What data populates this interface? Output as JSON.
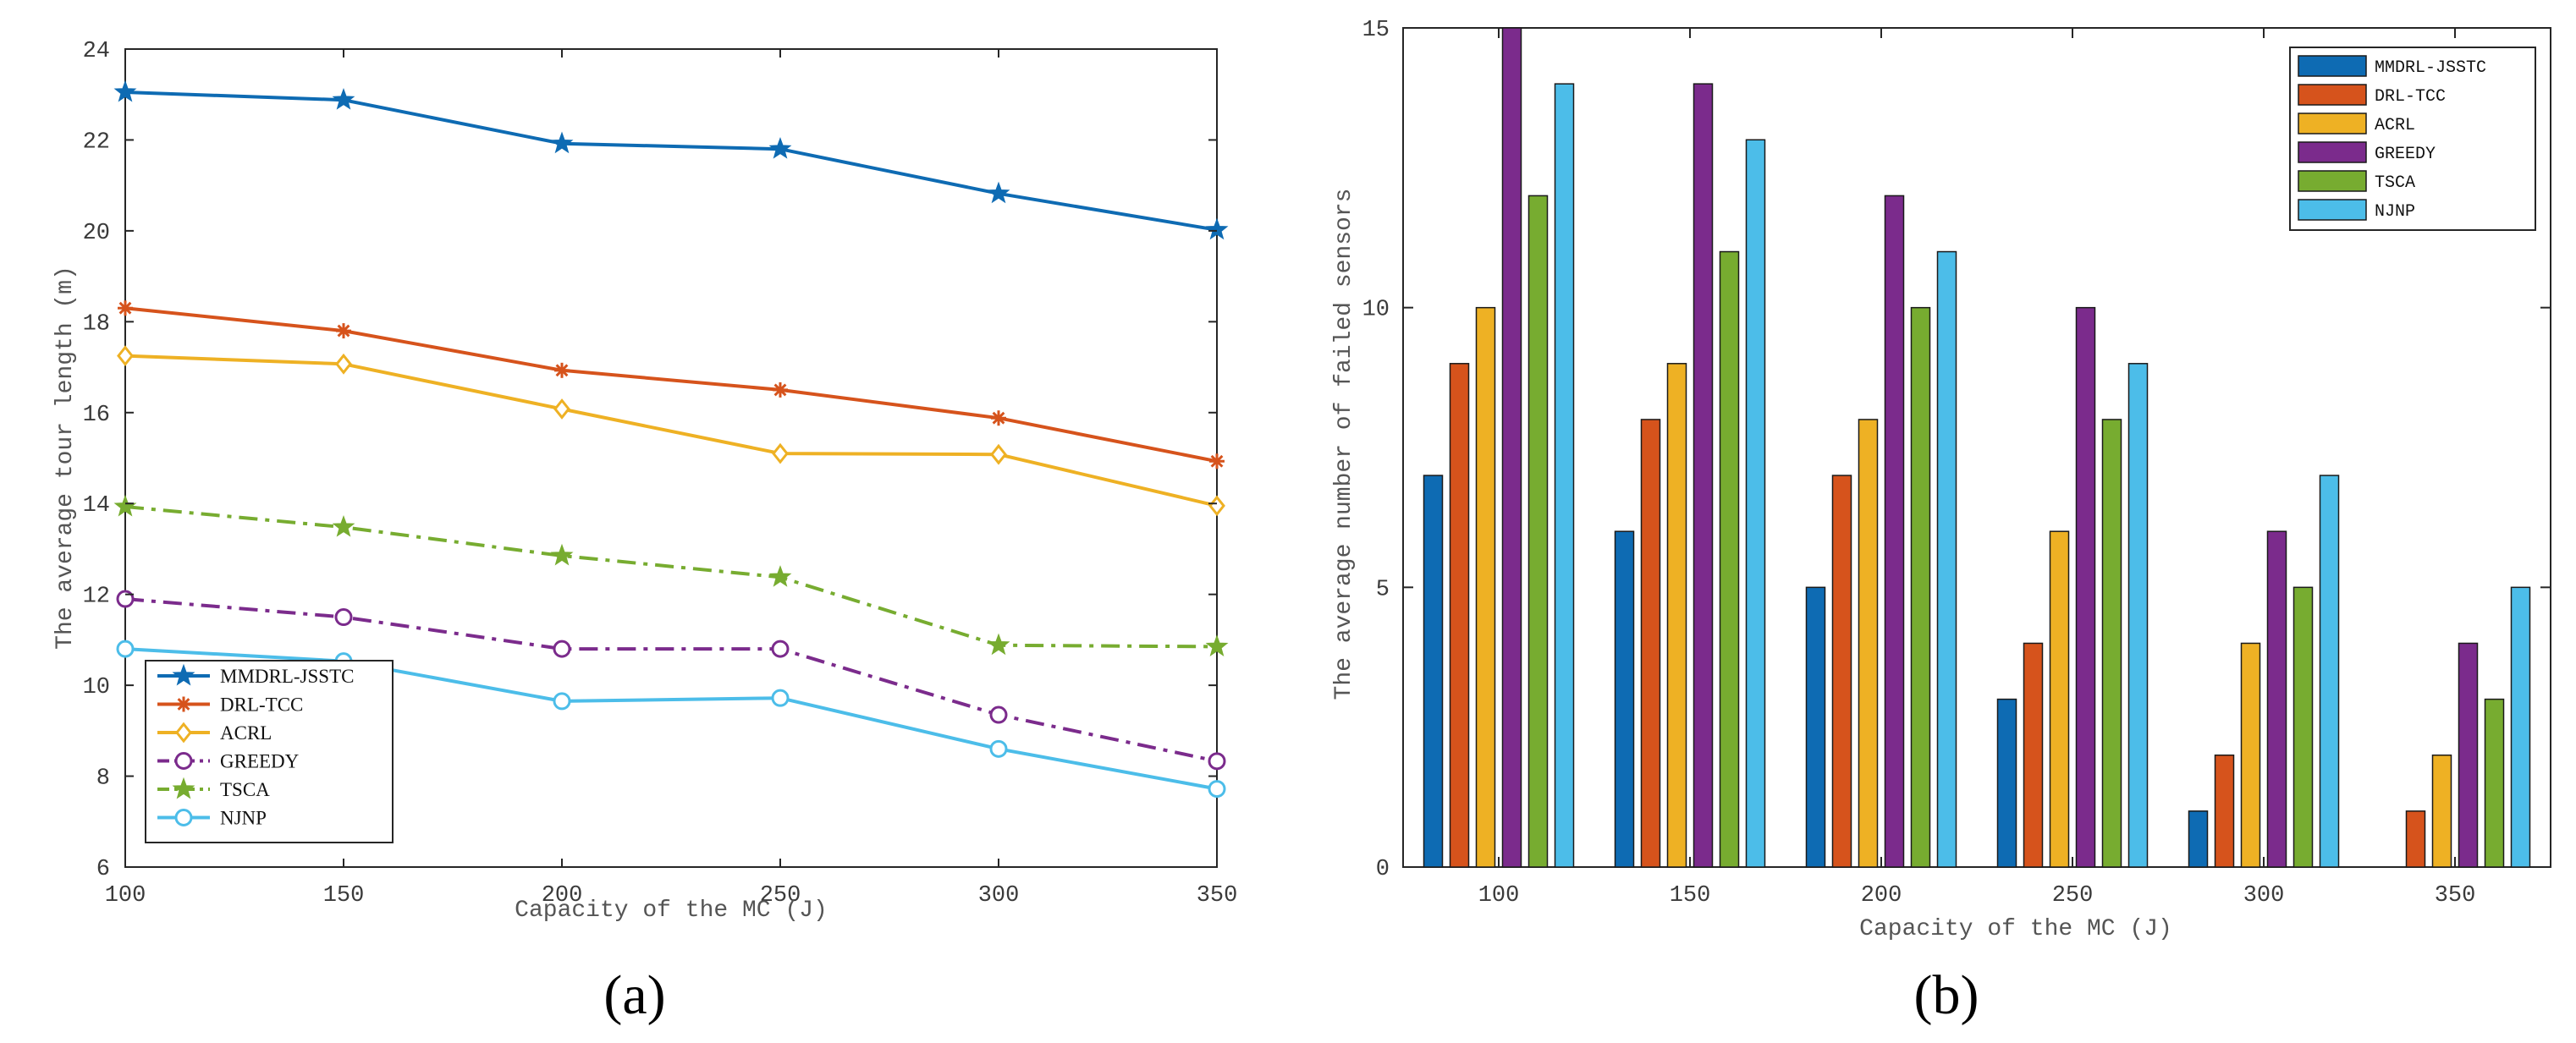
{
  "colors": {
    "MMDRL-JSSTC": "#0e6bb3",
    "DRL-TCC": "#d6531c",
    "ACRL": "#eeb124",
    "GREEDY": "#7b2b8c",
    "TSCA": "#77ac30",
    "NJNP": "#4cbde9"
  },
  "chart_data": [
    {
      "type": "line",
      "panel_label": "(a)",
      "xlabel": "Capacity of the MC (J)",
      "ylabel": "The average tour length (m)",
      "xlim": [
        100,
        350
      ],
      "ylim": [
        6,
        24
      ],
      "xticks": [
        100,
        150,
        200,
        250,
        300,
        350
      ],
      "yticks": [
        6,
        8,
        10,
        12,
        14,
        16,
        18,
        20,
        22,
        24
      ],
      "legend_position": "bottom-left",
      "x": [
        100,
        150,
        200,
        250,
        300,
        350
      ],
      "series": [
        {
          "name": "MMDRL-JSSTC",
          "marker": "star",
          "line": "solid",
          "values": [
            23.05,
            22.88,
            21.92,
            21.8,
            20.82,
            20.02
          ]
        },
        {
          "name": "DRL-TCC",
          "marker": "asterisk",
          "line": "solid",
          "values": [
            18.3,
            17.8,
            16.93,
            16.5,
            15.88,
            14.93
          ]
        },
        {
          "name": "ACRL",
          "marker": "diamond",
          "line": "solid",
          "values": [
            17.25,
            17.07,
            16.08,
            15.1,
            15.08,
            13.95
          ]
        },
        {
          "name": "GREEDY",
          "marker": "circle",
          "line": "dashdot",
          "values": [
            11.9,
            11.5,
            10.8,
            10.8,
            9.35,
            8.33
          ]
        },
        {
          "name": "TSCA",
          "marker": "star",
          "line": "dashdot",
          "values": [
            13.93,
            13.48,
            12.85,
            12.38,
            10.88,
            10.85
          ]
        },
        {
          "name": "NJNP",
          "marker": "circle",
          "line": "solid",
          "values": [
            10.8,
            10.53,
            9.65,
            9.72,
            8.6,
            7.72
          ]
        }
      ]
    },
    {
      "type": "bar",
      "panel_label": "(b)",
      "xlabel": "Capacity of the MC (J)",
      "ylabel": "The average number of failed sensors",
      "ylim": [
        0,
        15
      ],
      "yticks": [
        0,
        5,
        10,
        15
      ],
      "legend_position": "top-right",
      "categories": [
        "100",
        "150",
        "200",
        "250",
        "300",
        "350"
      ],
      "series": [
        {
          "name": "MMDRL-JSSTC",
          "values": [
            7,
            6,
            5,
            3,
            1,
            0
          ]
        },
        {
          "name": "DRL-TCC",
          "values": [
            9,
            8,
            7,
            4,
            2,
            1
          ]
        },
        {
          "name": "ACRL",
          "values": [
            10,
            9,
            8,
            6,
            4,
            2
          ]
        },
        {
          "name": "GREEDY",
          "values": [
            15,
            14,
            12,
            10,
            6,
            4
          ]
        },
        {
          "name": "TSCA",
          "values": [
            12,
            11,
            10,
            8,
            5,
            3
          ]
        },
        {
          "name": "NJNP",
          "values": [
            14,
            13,
            11,
            9,
            7,
            5
          ]
        }
      ]
    }
  ]
}
